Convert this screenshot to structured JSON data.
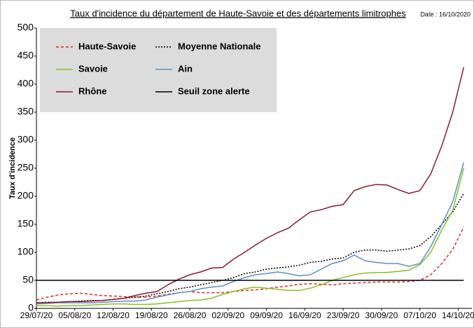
{
  "chart_data": {
    "type": "line",
    "title": "Taux d'incidence du département de Haute-Savoie et des départements limitrophes",
    "date_note": "Date : 16/10/2020",
    "y_label": "Taux d'incidence",
    "x": [
      0,
      2,
      4,
      6,
      8,
      10,
      12,
      14,
      16,
      18,
      20,
      22,
      24,
      26,
      28,
      30,
      32,
      34,
      36,
      38,
      40,
      42,
      44,
      46,
      48,
      50,
      52,
      54,
      56,
      58,
      60,
      62,
      64,
      66,
      68,
      70,
      72,
      74,
      76,
      78
    ],
    "xlim": [
      0,
      79.5
    ],
    "xticks": [
      {
        "value": 0,
        "label": "29/07/20"
      },
      {
        "value": 7,
        "label": "05/08/20"
      },
      {
        "value": 14,
        "label": "12/08/20"
      },
      {
        "value": 21,
        "label": "19/08/20"
      },
      {
        "value": 28,
        "label": "26/08/20"
      },
      {
        "value": 35,
        "label": "02/09/20"
      },
      {
        "value": 42,
        "label": "09/09/20"
      },
      {
        "value": 49,
        "label": "16/09/20"
      },
      {
        "value": 56,
        "label": "23/09/20"
      },
      {
        "value": 63,
        "label": "30/09/20"
      },
      {
        "value": 70,
        "label": "07/10/20"
      },
      {
        "value": 77,
        "label": "14/10/20"
      }
    ],
    "ylim": [
      0,
      500
    ],
    "yticks": [
      0,
      50,
      100,
      150,
      200,
      250,
      300,
      350,
      400,
      450,
      500
    ],
    "legend_position": "upper left",
    "series": [
      {
        "name": "Haute-Savoie",
        "color": "#e8231f",
        "dash": "dashed",
        "values": [
          15,
          20,
          24,
          26,
          27,
          25,
          23,
          22,
          21,
          20,
          20,
          22,
          25,
          28,
          30,
          28,
          28,
          28,
          30,
          32,
          33,
          35,
          38,
          40,
          43,
          44,
          43,
          42,
          44,
          45,
          46,
          47,
          47,
          47,
          48,
          50,
          60,
          80,
          105,
          145
        ]
      },
      {
        "name": "Moyenne Nationale",
        "color": "#000000",
        "dash": "dotted",
        "values": [
          10,
          11,
          11,
          12,
          13,
          14,
          14,
          16,
          18,
          20,
          22,
          26,
          30,
          35,
          38,
          42,
          46,
          50,
          55,
          62,
          65,
          70,
          72,
          74,
          77,
          82,
          84,
          88,
          90,
          100,
          104,
          104,
          102,
          104,
          106,
          112,
          128,
          150,
          172,
          205
        ]
      },
      {
        "name": "Savoie",
        "color": "#84c225",
        "dash": "solid",
        "values": [
          5,
          5,
          4,
          5,
          5,
          6,
          7,
          8,
          8,
          7,
          7,
          8,
          10,
          12,
          14,
          15,
          18,
          25,
          30,
          35,
          38,
          36,
          34,
          32,
          32,
          36,
          42,
          50,
          55,
          60,
          63,
          64,
          64,
          66,
          68,
          78,
          100,
          140,
          175,
          250
        ]
      },
      {
        "name": "Ain",
        "color": "#5b8fc9",
        "dash": "solid",
        "values": [
          8,
          9,
          10,
          10,
          10,
          10,
          11,
          12,
          13,
          13,
          15,
          20,
          24,
          28,
          30,
          35,
          38,
          40,
          48,
          55,
          60,
          62,
          65,
          62,
          58,
          60,
          70,
          80,
          85,
          95,
          85,
          82,
          80,
          80,
          75,
          80,
          110,
          150,
          190,
          260
        ]
      },
      {
        "name": "Rhône",
        "color": "#8b1a2c",
        "dash": "solid",
        "values": [
          10,
          10,
          11,
          12,
          12,
          13,
          14,
          16,
          18,
          23,
          27,
          30,
          42,
          52,
          60,
          65,
          72,
          73,
          88,
          100,
          113,
          125,
          135,
          143,
          158,
          172,
          176,
          182,
          185,
          210,
          217,
          221,
          220,
          212,
          205,
          210,
          240,
          290,
          350,
          430
        ]
      },
      {
        "name": "Seuil zone alerte",
        "color": "#000000",
        "dash": "solid",
        "values": [
          50,
          50,
          50,
          50,
          50,
          50,
          50,
          50,
          50,
          50,
          50,
          50,
          50,
          50,
          50,
          50,
          50,
          50,
          50,
          50,
          50,
          50,
          50,
          50,
          50,
          50,
          50,
          50,
          50,
          50,
          50,
          50,
          50,
          50,
          50,
          50,
          50,
          50,
          50,
          50
        ]
      }
    ]
  }
}
